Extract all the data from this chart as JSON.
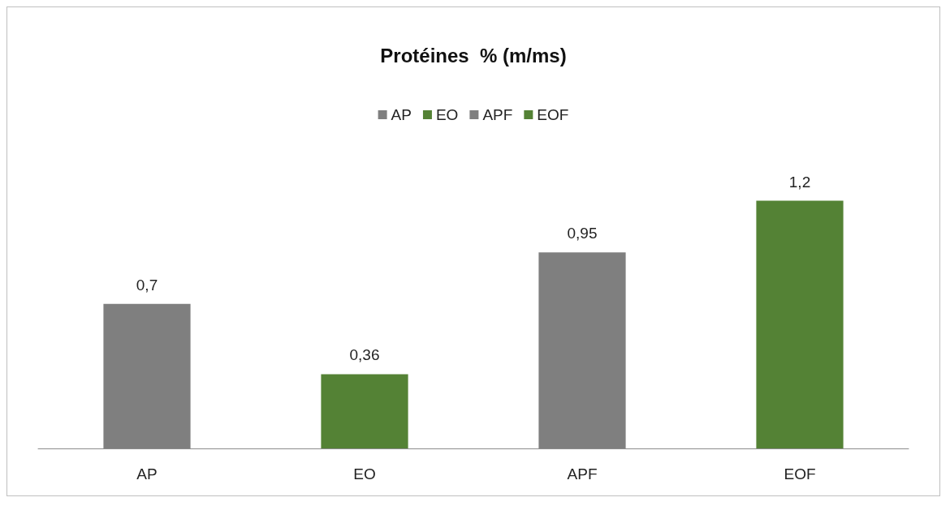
{
  "chart_data": {
    "type": "bar",
    "title": "Protéines  % (m/ms)",
    "categories": [
      "AP",
      "EO",
      "APF",
      "EOF"
    ],
    "series": [
      {
        "name": "AP",
        "color": "#7f7f7f",
        "values": [
          0.7,
          null,
          null,
          null
        ],
        "value_labels": [
          "0,7",
          null,
          null,
          null
        ]
      },
      {
        "name": "EO",
        "color": "#548235",
        "values": [
          null,
          0.36,
          null,
          null
        ],
        "value_labels": [
          null,
          "0,36",
          null,
          null
        ]
      },
      {
        "name": "APF",
        "color": "#7f7f7f",
        "values": [
          null,
          null,
          0.95,
          null
        ],
        "value_labels": [
          null,
          null,
          "0,95",
          null
        ]
      },
      {
        "name": "EOF",
        "color": "#548235",
        "values": [
          null,
          null,
          null,
          1.2
        ],
        "value_labels": [
          null,
          null,
          null,
          "1,2"
        ]
      }
    ],
    "legend": "top"
  }
}
